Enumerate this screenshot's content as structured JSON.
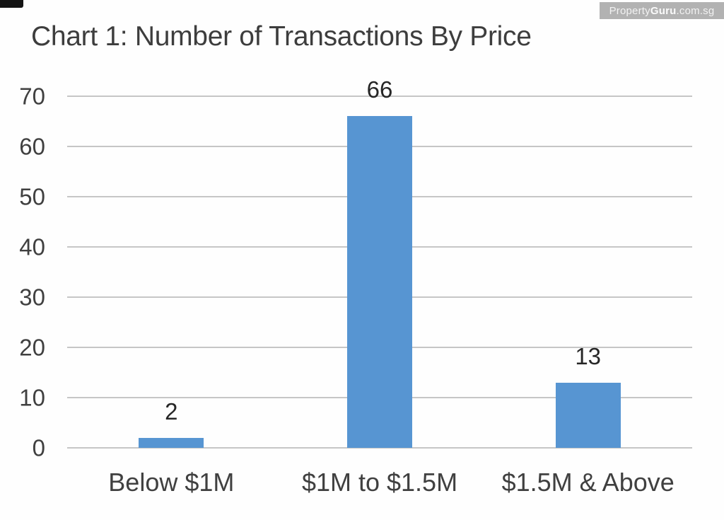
{
  "watermark": {
    "prefix": "Property",
    "bold": "Guru",
    "suffix": ".com.sg"
  },
  "chart_data": {
    "type": "bar",
    "title": "Chart 1: Number of Transactions By Price",
    "categories": [
      "Below $1M",
      "$1M to $1.5M",
      "$1.5M & Above"
    ],
    "values": [
      2,
      66,
      13
    ],
    "data_labels": [
      "2",
      "66",
      "13"
    ],
    "xlabel": "",
    "ylabel": "",
    "ylim": [
      0,
      70
    ],
    "yticks": [
      0,
      10,
      20,
      30,
      40,
      50,
      60,
      70
    ],
    "grid": true,
    "legend": "none",
    "colors": {
      "bar": "#5795d2",
      "gridline": "#c6c6c6",
      "axis_text": "#404040",
      "data_label_text": "#262626",
      "title_text": "#3d3d3d",
      "watermark_bg": "#b2b2b2",
      "watermark_text": "#f2f2f2"
    }
  }
}
